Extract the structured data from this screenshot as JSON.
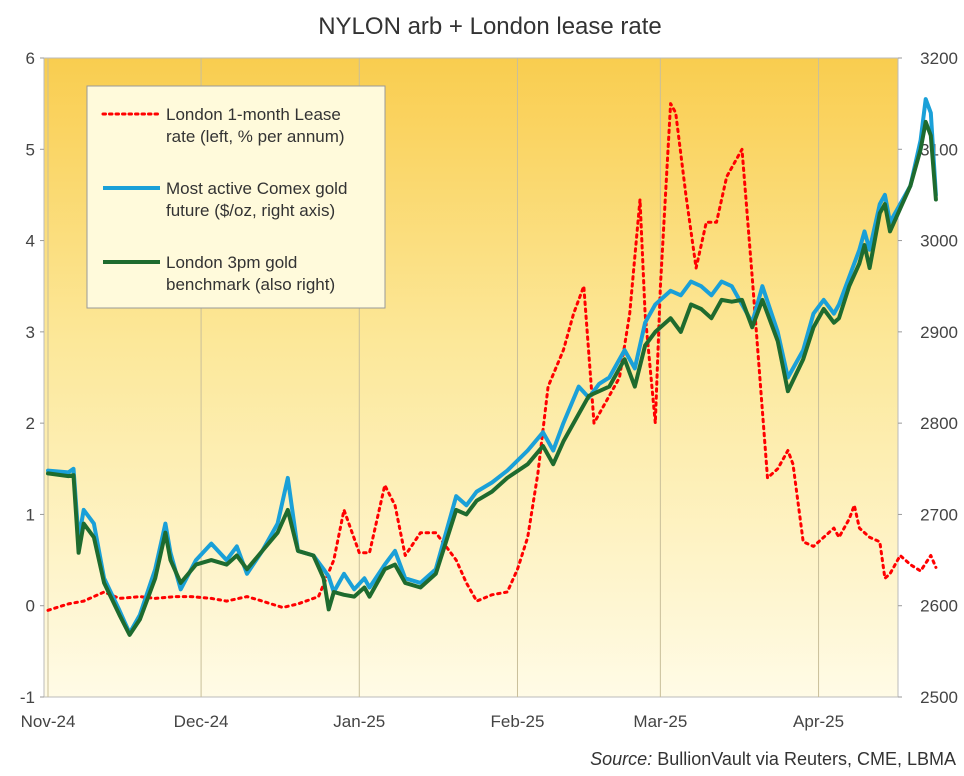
{
  "chart_data": {
    "type": "line",
    "title": "NYLON  arb + London lease rate",
    "source_label": "Source:",
    "source_text": " BullionVault via Reuters, CME, LBMA",
    "x_tick_labels": [
      "Nov-24",
      "Dec-24",
      "Jan-25",
      "Feb-25",
      "Mar-25",
      "Apr-25"
    ],
    "x_start": "2024-11-01",
    "x_end": "2025-04-15",
    "y_left": {
      "ylim": [
        -1,
        6
      ],
      "ticks": [
        "-1",
        "0",
        "1",
        "2",
        "3",
        "4",
        "5",
        "6"
      ]
    },
    "y_right": {
      "ylim": [
        2500,
        3200
      ],
      "ticks": [
        "2500",
        "2600",
        "2700",
        "2800",
        "2900",
        "3000",
        "3100",
        "3200"
      ]
    },
    "grid": "vertical",
    "legend_position": "top-left",
    "colors": {
      "lease": "#ff0000",
      "comex": "#1aa0d8",
      "london": "#1e6b2e",
      "bg_top": "#f9cd4f",
      "bg_bottom": "#fffbe6"
    },
    "series": [
      {
        "name": "London 1-month Lease rate (left, % per annum)",
        "legend_lines": [
          "London 1-month Lease",
          "rate (left, % per annum)"
        ],
        "axis": "left",
        "style": "dotted",
        "points": [
          [
            "2024-11-01",
            -0.05
          ],
          [
            "2024-11-05",
            0.02
          ],
          [
            "2024-11-08",
            0.05
          ],
          [
            "2024-11-12",
            0.15
          ],
          [
            "2024-11-15",
            0.08
          ],
          [
            "2024-11-19",
            0.1
          ],
          [
            "2024-11-22",
            0.08
          ],
          [
            "2024-11-26",
            0.1
          ],
          [
            "2024-11-29",
            0.1
          ],
          [
            "2024-12-03",
            0.08
          ],
          [
            "2024-12-06",
            0.05
          ],
          [
            "2024-12-10",
            0.1
          ],
          [
            "2024-12-13",
            0.05
          ],
          [
            "2024-12-17",
            -0.02
          ],
          [
            "2024-12-20",
            0.02
          ],
          [
            "2024-12-24",
            0.1
          ],
          [
            "2024-12-27",
            0.5
          ],
          [
            "2024-12-29",
            1.05
          ],
          [
            "2025-01-01",
            0.58
          ],
          [
            "2025-01-03",
            0.58
          ],
          [
            "2025-01-06",
            1.32
          ],
          [
            "2025-01-08",
            1.1
          ],
          [
            "2025-01-10",
            0.55
          ],
          [
            "2025-01-13",
            0.8
          ],
          [
            "2025-01-16",
            0.8
          ],
          [
            "2025-01-20",
            0.5
          ],
          [
            "2025-01-22",
            0.25
          ],
          [
            "2025-01-24",
            0.05
          ],
          [
            "2025-01-27",
            0.12
          ],
          [
            "2025-01-30",
            0.15
          ],
          [
            "2025-02-01",
            0.4
          ],
          [
            "2025-02-03",
            0.75
          ],
          [
            "2025-02-05",
            1.45
          ],
          [
            "2025-02-07",
            2.4
          ],
          [
            "2025-02-10",
            2.8
          ],
          [
            "2025-02-12",
            3.2
          ],
          [
            "2025-02-14",
            3.5
          ],
          [
            "2025-02-16",
            2.0
          ],
          [
            "2025-02-19",
            2.3
          ],
          [
            "2025-02-21",
            2.5
          ],
          [
            "2025-02-23",
            3.2
          ],
          [
            "2025-02-25",
            4.45
          ],
          [
            "2025-02-26",
            3.2
          ],
          [
            "2025-02-28",
            2.0
          ],
          [
            "2025-03-01",
            3.5
          ],
          [
            "2025-03-03",
            5.5
          ],
          [
            "2025-03-04",
            5.4
          ],
          [
            "2025-03-06",
            4.5
          ],
          [
            "2025-03-08",
            3.7
          ],
          [
            "2025-03-10",
            4.2
          ],
          [
            "2025-03-12",
            4.2
          ],
          [
            "2025-03-14",
            4.7
          ],
          [
            "2025-03-17",
            5.0
          ],
          [
            "2025-03-19",
            3.6
          ],
          [
            "2025-03-22",
            1.4
          ],
          [
            "2025-03-24",
            1.5
          ],
          [
            "2025-03-26",
            1.7
          ],
          [
            "2025-03-27",
            1.55
          ],
          [
            "2025-03-29",
            0.7
          ],
          [
            "2025-03-31",
            0.65
          ],
          [
            "2025-04-02",
            0.75
          ],
          [
            "2025-04-04",
            0.85
          ],
          [
            "2025-04-05",
            0.75
          ],
          [
            "2025-04-07",
            0.95
          ],
          [
            "2025-04-08",
            1.1
          ],
          [
            "2025-04-09",
            0.85
          ],
          [
            "2025-04-11",
            0.75
          ],
          [
            "2025-04-13",
            0.7
          ],
          [
            "2025-04-14",
            0.3
          ],
          [
            "2025-04-15",
            0.35
          ],
          [
            "2025-04-17",
            0.55
          ],
          [
            "2025-04-19",
            0.45
          ],
          [
            "2025-04-21",
            0.38
          ],
          [
            "2025-04-23",
            0.55
          ],
          [
            "2025-04-24",
            0.42
          ]
        ]
      },
      {
        "name": "Most active Comex gold future ($/oz, right axis)",
        "legend_lines": [
          "Most active Comex gold",
          "future ($/oz, right axis)"
        ],
        "axis": "right",
        "style": "solid",
        "points": [
          [
            "2024-11-01",
            2748
          ],
          [
            "2024-11-05",
            2746
          ],
          [
            "2024-11-06",
            2750
          ],
          [
            "2024-11-07",
            2673
          ],
          [
            "2024-11-08",
            2705
          ],
          [
            "2024-11-10",
            2690
          ],
          [
            "2024-11-12",
            2630
          ],
          [
            "2024-11-15",
            2595
          ],
          [
            "2024-11-17",
            2570
          ],
          [
            "2024-11-19",
            2590
          ],
          [
            "2024-11-22",
            2640
          ],
          [
            "2024-11-24",
            2690
          ],
          [
            "2024-11-25",
            2658
          ],
          [
            "2024-11-27",
            2618
          ],
          [
            "2024-11-30",
            2650
          ],
          [
            "2024-12-03",
            2668
          ],
          [
            "2024-12-06",
            2650
          ],
          [
            "2024-12-08",
            2665
          ],
          [
            "2024-12-10",
            2635
          ],
          [
            "2024-12-13",
            2660
          ],
          [
            "2024-12-16",
            2690
          ],
          [
            "2024-12-18",
            2740
          ],
          [
            "2024-12-20",
            2660
          ],
          [
            "2024-12-23",
            2655
          ],
          [
            "2024-12-25",
            2640
          ],
          [
            "2024-12-26",
            2632
          ],
          [
            "2024-12-27",
            2615
          ],
          [
            "2024-12-29",
            2635
          ],
          [
            "2024-12-31",
            2618
          ],
          [
            "2025-01-02",
            2630
          ],
          [
            "2025-01-03",
            2620
          ],
          [
            "2025-01-06",
            2645
          ],
          [
            "2025-01-08",
            2660
          ],
          [
            "2025-01-10",
            2630
          ],
          [
            "2025-01-13",
            2625
          ],
          [
            "2025-01-16",
            2640
          ],
          [
            "2025-01-20",
            2720
          ],
          [
            "2025-01-22",
            2710
          ],
          [
            "2025-01-24",
            2725
          ],
          [
            "2025-01-27",
            2735
          ],
          [
            "2025-01-30",
            2748
          ],
          [
            "2025-02-03",
            2770
          ],
          [
            "2025-02-06",
            2790
          ],
          [
            "2025-02-08",
            2770
          ],
          [
            "2025-02-10",
            2800
          ],
          [
            "2025-02-13",
            2840
          ],
          [
            "2025-02-15",
            2828
          ],
          [
            "2025-02-17",
            2843
          ],
          [
            "2025-02-19",
            2850
          ],
          [
            "2025-02-22",
            2880
          ],
          [
            "2025-02-24",
            2860
          ],
          [
            "2025-02-26",
            2910
          ],
          [
            "2025-02-28",
            2930
          ],
          [
            "2025-03-03",
            2945
          ],
          [
            "2025-03-05",
            2940
          ],
          [
            "2025-03-07",
            2955
          ],
          [
            "2025-03-09",
            2950
          ],
          [
            "2025-03-11",
            2940
          ],
          [
            "2025-03-13",
            2955
          ],
          [
            "2025-03-15",
            2950
          ],
          [
            "2025-03-17",
            2930
          ],
          [
            "2025-03-19",
            2910
          ],
          [
            "2025-03-21",
            2950
          ],
          [
            "2025-03-24",
            2900
          ],
          [
            "2025-03-26",
            2850
          ],
          [
            "2025-03-29",
            2880
          ],
          [
            "2025-03-31",
            2920
          ],
          [
            "2025-04-02",
            2935
          ],
          [
            "2025-04-04",
            2920
          ],
          [
            "2025-04-05",
            2930
          ],
          [
            "2025-04-07",
            2960
          ],
          [
            "2025-04-09",
            2990
          ],
          [
            "2025-04-10",
            3010
          ],
          [
            "2025-04-11",
            2990
          ],
          [
            "2025-04-13",
            3040
          ],
          [
            "2025-04-14",
            3050
          ],
          [
            "2025-04-15",
            3020
          ],
          [
            "2025-04-17",
            3040
          ],
          [
            "2025-04-19",
            3060
          ],
          [
            "2025-04-21",
            3110
          ],
          [
            "2025-04-22",
            3155
          ],
          [
            "2025-04-23",
            3140
          ],
          [
            "2025-04-24",
            3050
          ]
        ]
      },
      {
        "name": "London 3pm gold benchmark (also right)",
        "legend_lines": [
          "London 3pm gold",
          "benchmark (also right)"
        ],
        "axis": "right",
        "style": "solid",
        "points": [
          [
            "2024-11-01",
            2745
          ],
          [
            "2024-11-05",
            2742
          ],
          [
            "2024-11-06",
            2743
          ],
          [
            "2024-11-07",
            2658
          ],
          [
            "2024-11-08",
            2690
          ],
          [
            "2024-11-10",
            2675
          ],
          [
            "2024-11-12",
            2625
          ],
          [
            "2024-11-15",
            2590
          ],
          [
            "2024-11-17",
            2568
          ],
          [
            "2024-11-19",
            2585
          ],
          [
            "2024-11-22",
            2630
          ],
          [
            "2024-11-24",
            2680
          ],
          [
            "2024-11-25",
            2650
          ],
          [
            "2024-11-27",
            2625
          ],
          [
            "2024-11-30",
            2645
          ],
          [
            "2024-12-03",
            2650
          ],
          [
            "2024-12-06",
            2645
          ],
          [
            "2024-12-08",
            2655
          ],
          [
            "2024-12-10",
            2640
          ],
          [
            "2024-12-13",
            2660
          ],
          [
            "2024-12-16",
            2680
          ],
          [
            "2024-12-18",
            2705
          ],
          [
            "2024-12-20",
            2660
          ],
          [
            "2024-12-23",
            2655
          ],
          [
            "2024-12-25",
            2630
          ],
          [
            "2024-12-26",
            2596
          ],
          [
            "2024-12-27",
            2615
          ],
          [
            "2024-12-29",
            2612
          ],
          [
            "2024-12-31",
            2610
          ],
          [
            "2025-01-02",
            2620
          ],
          [
            "2025-01-03",
            2610
          ],
          [
            "2025-01-06",
            2640
          ],
          [
            "2025-01-08",
            2645
          ],
          [
            "2025-01-10",
            2625
          ],
          [
            "2025-01-13",
            2620
          ],
          [
            "2025-01-16",
            2635
          ],
          [
            "2025-01-20",
            2705
          ],
          [
            "2025-01-22",
            2700
          ],
          [
            "2025-01-24",
            2715
          ],
          [
            "2025-01-27",
            2725
          ],
          [
            "2025-01-30",
            2740
          ],
          [
            "2025-02-03",
            2755
          ],
          [
            "2025-02-06",
            2775
          ],
          [
            "2025-02-08",
            2755
          ],
          [
            "2025-02-10",
            2780
          ],
          [
            "2025-02-13",
            2810
          ],
          [
            "2025-02-15",
            2830
          ],
          [
            "2025-02-17",
            2835
          ],
          [
            "2025-02-19",
            2840
          ],
          [
            "2025-02-22",
            2870
          ],
          [
            "2025-02-24",
            2840
          ],
          [
            "2025-02-26",
            2885
          ],
          [
            "2025-02-28",
            2900
          ],
          [
            "2025-03-03",
            2915
          ],
          [
            "2025-03-05",
            2900
          ],
          [
            "2025-03-07",
            2930
          ],
          [
            "2025-03-09",
            2925
          ],
          [
            "2025-03-11",
            2915
          ],
          [
            "2025-03-13",
            2935
          ],
          [
            "2025-03-15",
            2933
          ],
          [
            "2025-03-17",
            2935
          ],
          [
            "2025-03-19",
            2905
          ],
          [
            "2025-03-21",
            2935
          ],
          [
            "2025-03-24",
            2890
          ],
          [
            "2025-03-26",
            2835
          ],
          [
            "2025-03-29",
            2870
          ],
          [
            "2025-03-31",
            2905
          ],
          [
            "2025-04-02",
            2925
          ],
          [
            "2025-04-04",
            2910
          ],
          [
            "2025-04-05",
            2915
          ],
          [
            "2025-04-07",
            2950
          ],
          [
            "2025-04-09",
            2975
          ],
          [
            "2025-04-10",
            2995
          ],
          [
            "2025-04-11",
            2970
          ],
          [
            "2025-04-13",
            3030
          ],
          [
            "2025-04-14",
            3040
          ],
          [
            "2025-04-15",
            3010
          ],
          [
            "2025-04-17",
            3035
          ],
          [
            "2025-04-19",
            3060
          ],
          [
            "2025-04-21",
            3100
          ],
          [
            "2025-04-22",
            3130
          ],
          [
            "2025-04-23",
            3115
          ],
          [
            "2025-04-24",
            3045
          ]
        ]
      }
    ]
  }
}
